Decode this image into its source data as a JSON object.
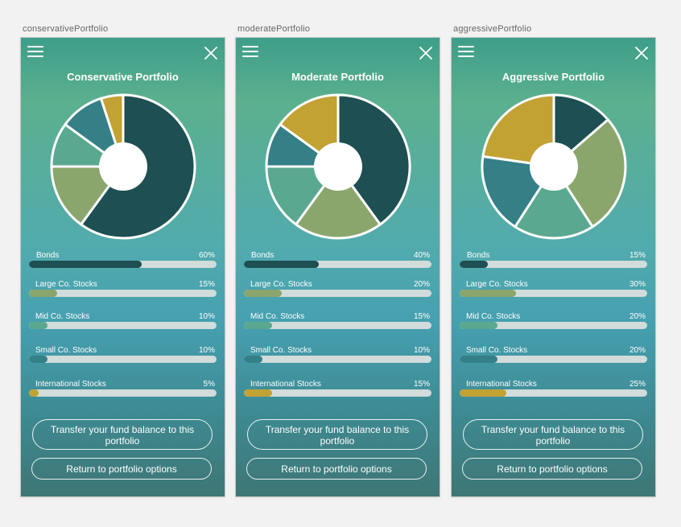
{
  "colors": {
    "bonds": "#1e4f52",
    "large": "#8aa66c",
    "mid": "#5aa88f",
    "small": "#357f87",
    "intl": "#c2a233",
    "track": "#d2dcdb"
  },
  "icons": {
    "menu": "hamburger-menu-icon",
    "close": "close-x-icon"
  },
  "artboards": [
    {
      "artboard_label": "conservativePortfolio",
      "title": "Conservative Portfolio",
      "allocations": [
        {
          "label": "Bonds",
          "pct": "60%",
          "value": 60,
          "color": "#1e4f52"
        },
        {
          "label": "Large Co. Stocks",
          "pct": "15%",
          "value": 15,
          "color": "#8aa66c"
        },
        {
          "label": "Mid Co. Stocks",
          "pct": "10%",
          "value": 10,
          "color": "#5aa88f"
        },
        {
          "label": "Small Co. Stocks",
          "pct": "10%",
          "value": 10,
          "color": "#357f87"
        },
        {
          "label": "International Stocks",
          "pct": "5%",
          "value": 5,
          "color": "#c2a233"
        }
      ],
      "transfer_button": "Transfer your fund balance to this portfolio",
      "return_button": "Return to portfolio options"
    },
    {
      "artboard_label": "moderatePortfolio",
      "title": "Moderate Portfolio",
      "allocations": [
        {
          "label": "Bonds",
          "pct": "40%",
          "value": 40,
          "color": "#1e4f52"
        },
        {
          "label": "Large Co. Stocks",
          "pct": "20%",
          "value": 20,
          "color": "#8aa66c"
        },
        {
          "label": "Mid Co. Stocks",
          "pct": "15%",
          "value": 15,
          "color": "#5aa88f"
        },
        {
          "label": "Small Co. Stocks",
          "pct": "10%",
          "value": 10,
          "color": "#357f87"
        },
        {
          "label": "International Stocks",
          "pct": "15%",
          "value": 15,
          "color": "#c2a233"
        }
      ],
      "transfer_button": "Transfer your fund balance to this portfolio",
      "return_button": "Return to portfolio options"
    },
    {
      "artboard_label": "aggressivePortfolio",
      "title": "Aggressive Portfolio",
      "allocations": [
        {
          "label": "Bonds",
          "pct": "15%",
          "value": 15,
          "color": "#1e4f52"
        },
        {
          "label": "Large Co. Stocks",
          "pct": "30%",
          "value": 30,
          "color": "#8aa66c"
        },
        {
          "label": "Mid Co. Stocks",
          "pct": "20%",
          "value": 20,
          "color": "#5aa88f"
        },
        {
          "label": "Small Co. Stocks",
          "pct": "20%",
          "value": 20,
          "color": "#357f87"
        },
        {
          "label": "International Stocks",
          "pct": "25%",
          "value": 25,
          "color": "#c2a233"
        }
      ],
      "transfer_button": "Transfer your fund balance to this portfolio",
      "return_button": "Return to portfolio options"
    }
  ],
  "chart_data": [
    {
      "type": "pie",
      "title": "Conservative Portfolio",
      "categories": [
        "Bonds",
        "Large Co. Stocks",
        "Mid Co. Stocks",
        "Small Co. Stocks",
        "International Stocks"
      ],
      "values": [
        60,
        15,
        10,
        10,
        5
      ]
    },
    {
      "type": "pie",
      "title": "Moderate Portfolio",
      "categories": [
        "Bonds",
        "Large Co. Stocks",
        "Mid Co. Stocks",
        "Small Co. Stocks",
        "International Stocks"
      ],
      "values": [
        40,
        20,
        15,
        10,
        15
      ]
    },
    {
      "type": "pie",
      "title": "Aggressive Portfolio",
      "categories": [
        "Bonds",
        "Large Co. Stocks",
        "Mid Co. Stocks",
        "Small Co. Stocks",
        "International Stocks"
      ],
      "values": [
        15,
        30,
        20,
        20,
        25
      ]
    }
  ]
}
